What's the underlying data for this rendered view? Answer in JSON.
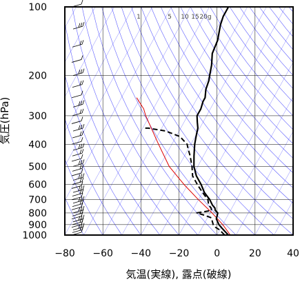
{
  "chart_data": {
    "type": "line",
    "chart_kind": "skew-T log-P",
    "xlabel": "気温(実線), 露点(破線)",
    "ylabel": "気圧(hPa)",
    "xlim": [
      -80,
      40
    ],
    "ylim": [
      1000,
      100
    ],
    "y_scale": "log",
    "x_ticks": [
      -80,
      -60,
      -40,
      -20,
      0,
      20,
      40
    ],
    "y_ticks": [
      100,
      200,
      300,
      400,
      500,
      600,
      700,
      800,
      900,
      1000
    ],
    "grid": true,
    "mixing_ratio_labels": [
      "1",
      "5",
      "10",
      "15",
      "20g"
    ],
    "colors": {
      "temperature": "#000000",
      "dewpoint": "#000000",
      "parcel": "#dd0000",
      "adiabats": "#3333ff",
      "grid": "#000000"
    },
    "series": [
      {
        "style": "solid",
        "points": [
          [
            1000,
            6
          ],
          [
            975,
            4
          ],
          [
            950,
            2
          ],
          [
            925,
            0
          ],
          [
            900,
            -2
          ],
          [
            850,
            -5
          ],
          [
            800,
            -6
          ],
          [
            780,
            -8
          ],
          [
            760,
            -9
          ],
          [
            740,
            -11
          ],
          [
            700,
            -14
          ],
          [
            650,
            -19
          ],
          [
            600,
            -23
          ],
          [
            550,
            -28
          ],
          [
            500,
            -32
          ],
          [
            450,
            -35
          ],
          [
            400,
            -38
          ],
          [
            380,
            -39
          ],
          [
            360,
            -40
          ],
          [
            340,
            -41
          ],
          [
            320,
            -43
          ],
          [
            300,
            -45
          ],
          [
            280,
            -45
          ],
          [
            260,
            -46
          ],
          [
            250,
            -46
          ],
          [
            230,
            -48
          ],
          [
            210,
            -49
          ],
          [
            200,
            -50
          ],
          [
            180,
            -52
          ],
          [
            160,
            -55
          ],
          [
            140,
            -56
          ],
          [
            120,
            -59
          ],
          [
            110,
            -60
          ],
          [
            105,
            -60
          ],
          [
            100,
            -60
          ]
        ]
      },
      {
        "style": "dashed",
        "points": [
          [
            1000,
            4
          ],
          [
            975,
            2
          ],
          [
            950,
            0
          ],
          [
            925,
            -3
          ],
          [
            900,
            -5
          ],
          [
            860,
            -7
          ],
          [
            840,
            -8
          ],
          [
            820,
            -12
          ],
          [
            800,
            -17
          ],
          [
            780,
            -10
          ],
          [
            760,
            -11
          ],
          [
            740,
            -13
          ],
          [
            700,
            -15
          ],
          [
            650,
            -20
          ],
          [
            600,
            -25
          ],
          [
            550,
            -30
          ],
          [
            500,
            -33
          ],
          [
            450,
            -37
          ],
          [
            420,
            -40
          ],
          [
            400,
            -42
          ],
          [
            370,
            -48
          ],
          [
            350,
            -57
          ],
          [
            340,
            -67
          ],
          [
            340,
            -70
          ]
        ]
      },
      {
        "style": "parcel",
        "points": [
          [
            1000,
            7
          ],
          [
            900,
            0
          ],
          [
            800,
            -9
          ],
          [
            700,
            -20
          ],
          [
            600,
            -32
          ],
          [
            500,
            -45
          ],
          [
            400,
            -57
          ],
          [
            300,
            -72
          ],
          [
            280,
            -75
          ],
          [
            250,
            -82
          ]
        ]
      }
    ],
    "wind_barbs_present": true
  }
}
